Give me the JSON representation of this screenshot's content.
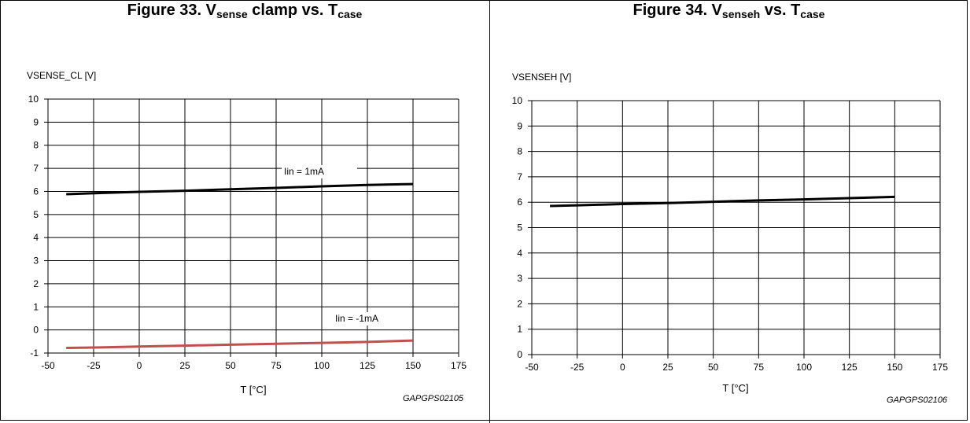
{
  "chart_data": [
    {
      "type": "line",
      "title": {
        "prefix": "Figure 33. V",
        "sub1": "sense",
        "mid": " clamp vs. T",
        "sub2": "case"
      },
      "ylabel": "VSENSE_CL [V]",
      "xlabel": "T [°C]",
      "xlim": [
        -50,
        175
      ],
      "ylim": [
        -1,
        10
      ],
      "xticks": [
        "-50",
        "-25",
        "0",
        "25",
        "50",
        "75",
        "100",
        "125",
        "150",
        "175"
      ],
      "yticks": [
        "-1",
        "0",
        "1",
        "2",
        "3",
        "4",
        "5",
        "6",
        "7",
        "8",
        "9",
        "10"
      ],
      "grid": true,
      "series": [
        {
          "label": "Iin = 1mA",
          "color": "#000000",
          "x": [
            -40,
            -25,
            0,
            25,
            50,
            75,
            100,
            125,
            150
          ],
          "y": [
            5.88,
            5.92,
            5.98,
            6.03,
            6.09,
            6.15,
            6.22,
            6.28,
            6.32
          ]
        },
        {
          "label": "Iin = -1mA",
          "color": "#c0504d",
          "x": [
            -40,
            -25,
            0,
            25,
            50,
            75,
            100,
            125,
            150
          ],
          "y": [
            -0.78,
            -0.76,
            -0.72,
            -0.68,
            -0.64,
            -0.6,
            -0.56,
            -0.52,
            -0.46
          ]
        }
      ],
      "code": "GAPGPS02105"
    },
    {
      "type": "line",
      "title": {
        "prefix": "Figure 34. V",
        "sub1": "senseh",
        "mid": " vs. T",
        "sub2": "case"
      },
      "ylabel": "VSENSEH [V]",
      "xlabel": "T [°C]",
      "xlim": [
        -50,
        175
      ],
      "ylim": [
        0,
        10
      ],
      "xticks": [
        "-50",
        "-25",
        "0",
        "25",
        "50",
        "75",
        "100",
        "125",
        "150",
        "175"
      ],
      "yticks": [
        "0",
        "1",
        "2",
        "3",
        "4",
        "5",
        "6",
        "7",
        "8",
        "9",
        "10"
      ],
      "grid": true,
      "series": [
        {
          "label": "",
          "color": "#000000",
          "x": [
            -40,
            -25,
            0,
            25,
            50,
            75,
            100,
            125,
            150
          ],
          "y": [
            5.85,
            5.88,
            5.93,
            5.97,
            6.02,
            6.07,
            6.11,
            6.16,
            6.21
          ]
        }
      ],
      "code": "GAPGPS02106"
    }
  ]
}
